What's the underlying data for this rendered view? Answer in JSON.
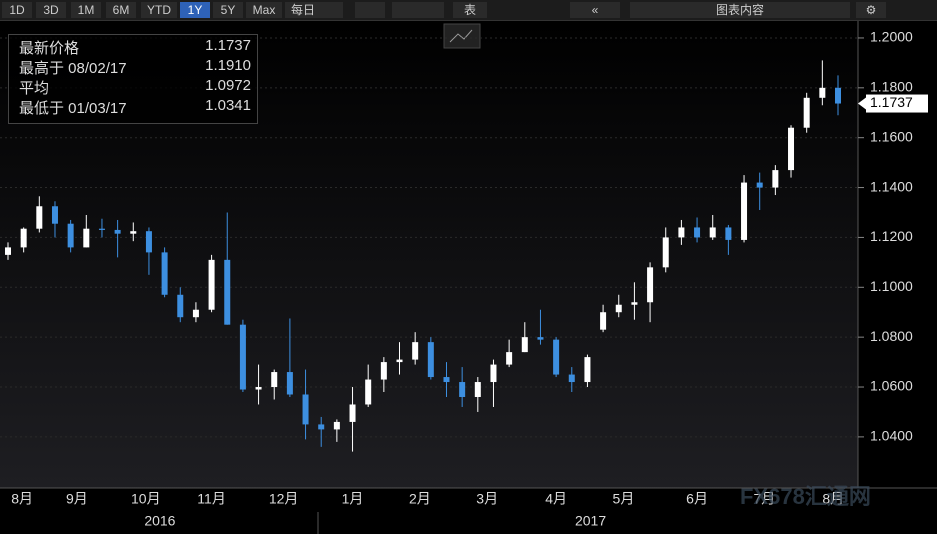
{
  "toolbar": {
    "ranges": [
      "1D",
      "3D",
      "1M",
      "6M",
      "YTD",
      "1Y",
      "5Y",
      "Max"
    ],
    "selected": "1Y",
    "frequency": "每日",
    "table": "表",
    "content": "图表内容"
  },
  "chart_data": {
    "type": "candlestick",
    "legend": [
      {
        "label": "最新价格",
        "value": 1.1737
      },
      {
        "label": "最高于 08/02/17",
        "value": {
          "value": 1.191,
          "label": "1.1910"
        }
      },
      {
        "label": "平均",
        "value": 1.0972
      },
      {
        "label": "最低于 01/03/17",
        "value": 1.0341
      }
    ],
    "last_price": 1.1737,
    "watermark": "FX678汇通网",
    "up_color": "#ffffff",
    "down_color": "#3d8fe0",
    "open": [
      1.113,
      1.116,
      1.1235,
      1.1325,
      1.1255,
      1.116,
      1.1235,
      1.123,
      1.1215,
      1.1225,
      1.114,
      1.097,
      1.088,
      1.091,
      1.111,
      1.085,
      1.059,
      1.06,
      1.066,
      1.057,
      1.045,
      1.043,
      1.046,
      1.053,
      1.063,
      1.07,
      1.071,
      1.078,
      1.064,
      1.062,
      1.056,
      1.062,
      1.069,
      1.074,
      1.08,
      1.079,
      1.065,
      1.062,
      1.083,
      1.09,
      1.093,
      1.094,
      1.108,
      1.12,
      1.124,
      1.12,
      1.124,
      1.119,
      1.142,
      1.14,
      1.147,
      1.164,
      1.176,
      1.18
    ],
    "high": [
      1.118,
      1.124,
      1.1365,
      1.1345,
      1.127,
      1.129,
      1.1275,
      1.127,
      1.126,
      1.124,
      1.116,
      1.1,
      1.094,
      1.113,
      1.13,
      1.087,
      1.069,
      1.067,
      1.0875,
      1.067,
      1.048,
      1.047,
      1.06,
      1.069,
      1.072,
      1.078,
      1.082,
      1.08,
      1.07,
      1.068,
      1.064,
      1.071,
      1.079,
      1.086,
      1.091,
      1.08,
      1.068,
      1.073,
      1.093,
      1.097,
      1.102,
      1.11,
      1.124,
      1.127,
      1.128,
      1.129,
      1.125,
      1.145,
      1.146,
      1.149,
      1.165,
      1.178,
      1.191,
      1.185
    ],
    "low": [
      1.111,
      1.114,
      1.122,
      1.12,
      1.114,
      1.116,
      1.12,
      1.112,
      1.1185,
      1.105,
      1.096,
      1.086,
      1.086,
      1.09,
      1.085,
      1.058,
      1.053,
      1.055,
      1.056,
      1.039,
      1.036,
      1.038,
      1.0341,
      1.052,
      1.058,
      1.065,
      1.069,
      1.063,
      1.056,
      1.052,
      1.05,
      1.052,
      1.068,
      1.074,
      1.077,
      1.064,
      1.058,
      1.06,
      1.082,
      1.088,
      1.087,
      1.086,
      1.106,
      1.117,
      1.118,
      1.119,
      1.113,
      1.118,
      1.131,
      1.137,
      1.144,
      1.162,
      1.173,
      1.169
    ],
    "close": [
      1.116,
      1.1235,
      1.1325,
      1.1255,
      1.116,
      1.1235,
      1.123,
      1.1215,
      1.1225,
      1.114,
      1.097,
      1.088,
      1.091,
      1.111,
      1.085,
      1.059,
      1.06,
      1.066,
      1.057,
      1.045,
      1.043,
      1.046,
      1.053,
      1.063,
      1.07,
      1.071,
      1.078,
      1.064,
      1.062,
      1.056,
      1.062,
      1.069,
      1.074,
      1.08,
      1.079,
      1.065,
      1.062,
      1.072,
      1.09,
      1.093,
      1.094,
      1.108,
      1.12,
      1.124,
      1.12,
      1.124,
      1.119,
      1.142,
      1.14,
      1.147,
      1.164,
      1.176,
      1.18,
      1.1737
    ],
    "ylim": [
      1.0195,
      1.2064
    ],
    "yticks": [
      {
        "value": 1.04,
        "label": "1.0400"
      },
      {
        "value": 1.06,
        "label": "1.0600"
      },
      {
        "value": 1.08,
        "label": "1.0800"
      },
      {
        "value": 1.1,
        "label": "1.1000"
      },
      {
        "value": 1.12,
        "label": "1.1200"
      },
      {
        "value": 1.14,
        "label": "1.1400"
      },
      {
        "value": 1.16,
        "label": "1.1600"
      },
      {
        "value": 1.18,
        "label": "1.1800"
      },
      {
        "value": 1.2,
        "label": "1.2000"
      }
    ],
    "xticks": [
      {
        "value": 0.9,
        "label": "8月"
      },
      {
        "value": 4.4,
        "label": "9月"
      },
      {
        "value": 8.8,
        "label": "10月"
      },
      {
        "value": 13,
        "label": "11月"
      },
      {
        "value": 17.6,
        "label": "12月"
      },
      {
        "value": 22,
        "label": "1月"
      },
      {
        "value": 26.3,
        "label": "2月"
      },
      {
        "value": 30.6,
        "label": "3月"
      },
      {
        "value": 35,
        "label": "4月"
      },
      {
        "value": 39.3,
        "label": "5月"
      },
      {
        "value": 44,
        "label": "6月"
      },
      {
        "value": 48.3,
        "label": "7月"
      },
      {
        "value": 52.7,
        "label": "8月"
      }
    ],
    "years": [
      {
        "value": 9.7,
        "label": "2016"
      },
      {
        "value": 37.2,
        "label": "2017"
      }
    ],
    "grid": true
  }
}
